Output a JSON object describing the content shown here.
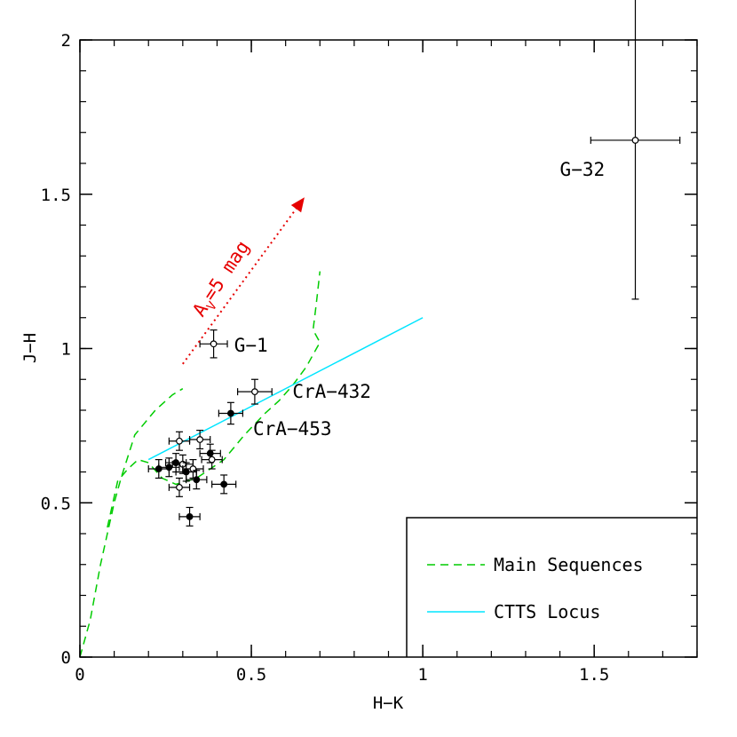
{
  "chart_data": {
    "type": "scatter",
    "xlabel": "H−K",
    "ylabel": "J−H",
    "xlim": [
      0,
      1.8
    ],
    "ylim": [
      0,
      2
    ],
    "x_ticks": [
      "0",
      "0.5",
      "1",
      "1.5"
    ],
    "x_tick_values": [
      0,
      0.5,
      1,
      1.5
    ],
    "y_ticks": [
      "0",
      "0.5",
      "1",
      "1.5",
      "2"
    ],
    "y_tick_values": [
      0,
      0.5,
      1,
      1.5,
      2
    ],
    "grid": false,
    "legend_position": "bottom-right",
    "legend": [
      {
        "label": "Main Sequences",
        "style": "dashed",
        "color": "#00cc00"
      },
      {
        "label": "CTTS Locus",
        "style": "solid",
        "color": "#00e5ff"
      }
    ],
    "series": [
      {
        "label": "Main Sequences",
        "style": "dashed",
        "color": "#00cc00",
        "segments": [
          [
            [
              0.0,
              0.0
            ],
            [
              0.03,
              0.12
            ],
            [
              0.06,
              0.3
            ],
            [
              0.08,
              0.4
            ],
            [
              0.1,
              0.5
            ],
            [
              0.12,
              0.58
            ],
            [
              0.16,
              0.72
            ],
            [
              0.22,
              0.8
            ],
            [
              0.27,
              0.85
            ],
            [
              0.3,
              0.87
            ]
          ],
          [
            [
              0.08,
              0.42
            ],
            [
              0.11,
              0.57
            ],
            [
              0.14,
              0.61
            ],
            [
              0.17,
              0.64
            ],
            [
              0.2,
              0.63
            ],
            [
              0.24,
              0.58
            ],
            [
              0.28,
              0.56
            ],
            [
              0.34,
              0.58
            ],
            [
              0.42,
              0.64
            ],
            [
              0.48,
              0.72
            ],
            [
              0.54,
              0.79
            ],
            [
              0.58,
              0.83
            ],
            [
              0.62,
              0.88
            ],
            [
              0.66,
              0.94
            ],
            [
              0.69,
              1.0
            ],
            [
              0.7,
              1.02
            ],
            [
              0.68,
              1.06
            ],
            [
              0.69,
              1.15
            ],
            [
              0.7,
              1.25
            ]
          ]
        ]
      },
      {
        "label": "CTTS Locus",
        "style": "solid",
        "color": "#00e5ff",
        "x": [
          0.2,
          1.0
        ],
        "y": [
          0.64,
          1.1
        ]
      }
    ],
    "points": [
      {
        "x": 0.39,
        "y": 1.015,
        "xerr": 0.04,
        "yerr": 0.045,
        "filled": false
      },
      {
        "x": 0.51,
        "y": 0.86,
        "xerr": 0.05,
        "yerr": 0.04,
        "filled": false
      },
      {
        "x": 0.44,
        "y": 0.79,
        "xerr": 0.035,
        "yerr": 0.035,
        "filled": true
      },
      {
        "x": 1.62,
        "y": 1.675,
        "xerr": 0.13,
        "yerr": 0.515,
        "filled": false
      },
      {
        "x": 0.29,
        "y": 0.7,
        "xerr": 0.03,
        "yerr": 0.03,
        "filled": false
      },
      {
        "x": 0.35,
        "y": 0.705,
        "xerr": 0.03,
        "yerr": 0.03,
        "filled": false
      },
      {
        "x": 0.38,
        "y": 0.66,
        "xerr": 0.03,
        "yerr": 0.03,
        "filled": true
      },
      {
        "x": 0.385,
        "y": 0.64,
        "xerr": 0.03,
        "yerr": 0.03,
        "filled": false
      },
      {
        "x": 0.23,
        "y": 0.61,
        "xerr": 0.03,
        "yerr": 0.03,
        "filled": true
      },
      {
        "x": 0.26,
        "y": 0.615,
        "xerr": 0.03,
        "yerr": 0.03,
        "filled": true
      },
      {
        "x": 0.28,
        "y": 0.63,
        "xerr": 0.03,
        "yerr": 0.03,
        "filled": true
      },
      {
        "x": 0.3,
        "y": 0.625,
        "xerr": 0.03,
        "yerr": 0.03,
        "filled": false
      },
      {
        "x": 0.31,
        "y": 0.6,
        "xerr": 0.03,
        "yerr": 0.03,
        "filled": true
      },
      {
        "x": 0.33,
        "y": 0.61,
        "xerr": 0.03,
        "yerr": 0.03,
        "filled": false
      },
      {
        "x": 0.34,
        "y": 0.575,
        "xerr": 0.03,
        "yerr": 0.03,
        "filled": true
      },
      {
        "x": 0.29,
        "y": 0.55,
        "xerr": 0.03,
        "yerr": 0.03,
        "filled": false
      },
      {
        "x": 0.42,
        "y": 0.56,
        "xerr": 0.035,
        "yerr": 0.03,
        "filled": true
      },
      {
        "x": 0.32,
        "y": 0.455,
        "xerr": 0.03,
        "yerr": 0.03,
        "filled": true
      }
    ],
    "labels": [
      {
        "text": "G−1",
        "x": 0.45,
        "y": 0.99
      },
      {
        "text": "CrA−432",
        "x": 0.62,
        "y": 0.84
      },
      {
        "text": "CrA−453",
        "x": 0.505,
        "y": 0.72
      },
      {
        "text": "G−32",
        "x": 1.4,
        "y": 1.56
      }
    ],
    "reddening_vector": {
      "label_main": "A",
      "label_sub": "V",
      "label_rest": "=5 mag",
      "color": "#e60000",
      "x0": 0.3,
      "y0": 0.95,
      "x1": 0.655,
      "y1": 1.49
    }
  }
}
